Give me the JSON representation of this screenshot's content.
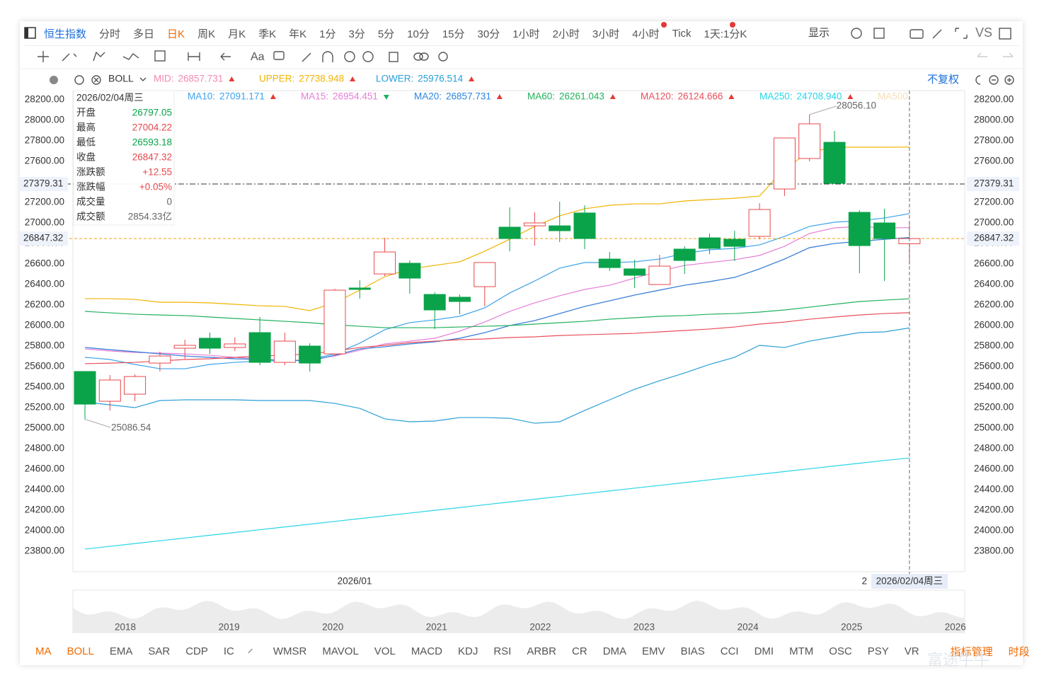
{
  "toolbar": {
    "symbol": "恒生指数",
    "periods": [
      "分时",
      "多日",
      "日K",
      "周K",
      "月K",
      "季K",
      "年K",
      "1分",
      "3分",
      "5分",
      "10分",
      "15分",
      "30分",
      "1小时",
      "2小时",
      "3小时",
      "4小时",
      "Tick",
      "1天:1分K"
    ],
    "active_period_index": 2,
    "display": "显示",
    "vs": "VS",
    "text_tool": "Aa"
  },
  "fq": "不复权",
  "info_panel": {
    "date": "2026/02/04周三",
    "labels": [
      "开盘",
      "最高",
      "最低",
      "收盘",
      "涨跌额",
      "涨跌幅",
      "成交量",
      "成交额"
    ],
    "change": "+12.55",
    "change_pct": "+0.05%",
    "volume": "0",
    "amount": "2854.33亿"
  },
  "chart_data": {
    "type": "candlestick",
    "indicator": "BOLL",
    "categories": [
      null,
      null,
      null,
      null,
      null,
      null,
      null,
      null,
      null,
      null,
      "2026/01",
      null,
      null,
      null,
      null,
      null,
      null,
      null,
      null,
      null,
      null,
      null,
      null,
      null,
      null,
      null,
      null,
      null,
      null,
      null,
      null,
      "2",
      null,
      "2026/02/04周三"
    ],
    "open": [
      25552,
      25262,
      25331,
      25634,
      25779,
      25876,
      25786,
      25931,
      25641,
      25800,
      25724,
      26366,
      26503,
      26607,
      26303,
      26276,
      26379,
      26959,
      26972,
      26972,
      27097,
      26648,
      26552,
      26400,
      26745,
      26855,
      26841,
      26869,
      27331,
      27628,
      27786,
      27103,
      27000,
      26797.05
    ],
    "high": [
      25552,
      25517,
      25524,
      25745,
      25862,
      25931,
      25883,
      26083,
      25931,
      25827,
      26359,
      26441,
      26855,
      26634,
      26324,
      26303,
      26614,
      27152,
      27103,
      27207,
      27172,
      26717,
      26641,
      26690,
      26772,
      26897,
      26924,
      27193,
      27828,
      28056.1,
      27897,
      27124,
      27138,
      27004.22
    ],
    "low": [
      25086.54,
      25172,
      25262,
      25552,
      25676,
      25724,
      25752,
      25614,
      25614,
      25552,
      25703,
      26262,
      26483,
      26310,
      25966,
      26110,
      26186,
      26724,
      26779,
      26814,
      26745,
      26531,
      26365,
      26400,
      26503,
      26697,
      26628,
      26841,
      27262,
      27600,
      27379,
      26510,
      26434,
      26593.18
    ],
    "close": [
      25234,
      25469,
      25503,
      25703,
      25807,
      25779,
      25821,
      25641,
      25848,
      25634,
      26345,
      26352,
      26717,
      26462,
      26152,
      26234,
      26614,
      26848,
      27000,
      26924,
      26848,
      26565,
      26490,
      26579,
      26634,
      26752,
      26772,
      27131,
      27828,
      27966,
      27386,
      26779,
      26848,
      26847.32
    ],
    "up_color": "#e5484d",
    "down_color": "#0aa34a",
    "series": [
      {
        "name": "MID:",
        "color": "#f08ab3",
        "readout": "26857.731",
        "trend": "up",
        "values": [
          25786,
          25765,
          25745,
          25724,
          25703,
          25690,
          25676,
          25669,
          25662,
          25655,
          25710,
          25772,
          25793,
          25821,
          25841,
          25876,
          25931,
          26000,
          26048,
          26117,
          26186,
          26241,
          26297,
          26345,
          26393,
          26428,
          26469,
          26552,
          26648,
          26759,
          26800,
          26821,
          26841,
          26858
        ]
      },
      {
        "name": "UPPER:",
        "color": "#f0b400",
        "readout": "27738.948",
        "trend": "up",
        "values": [
          26262,
          26262,
          26255,
          26227,
          26227,
          26221,
          26207,
          26193,
          26186,
          26145,
          26221,
          26345,
          26476,
          26552,
          26586,
          26621,
          26724,
          26841,
          26966,
          27069,
          27138,
          27172,
          27186,
          27186,
          27214,
          27228,
          27241,
          27262,
          27531,
          27690,
          27738,
          27738,
          27738,
          27739
        ]
      },
      {
        "name": "LOWER:",
        "color": "#2a9fd6",
        "readout": "25976.514",
        "trend": "up",
        "values": [
          25255,
          25227,
          25200,
          25269,
          25276,
          25276,
          25276,
          25269,
          25269,
          25269,
          25241,
          25193,
          25090,
          25062,
          25069,
          25103,
          25103,
          25096,
          25048,
          25062,
          25172,
          25276,
          25379,
          25462,
          25538,
          25621,
          25690,
          25807,
          25786,
          25848,
          25890,
          25931,
          25938,
          25977
        ]
      },
      {
        "name": "MA10:",
        "color": "#3ba3ec",
        "readout": "27091.171",
        "trend": "up",
        "values": [
          25690,
          25669,
          25621,
          25579,
          25579,
          25621,
          25641,
          25655,
          25655,
          25669,
          25724,
          25828,
          25959,
          26028,
          26055,
          26090,
          26172,
          26317,
          26434,
          26559,
          26614,
          26614,
          26621,
          26648,
          26703,
          26738,
          26752,
          26786,
          26869,
          26966,
          27007,
          27021,
          27048,
          27091
        ]
      },
      {
        "name": "MA15:",
        "color": "#e57fd6",
        "readout": "26954.451",
        "trend": "down",
        "values": [
          25772,
          25752,
          25738,
          25731,
          25724,
          25710,
          25690,
          25676,
          25655,
          25669,
          25703,
          25759,
          25821,
          25848,
          25876,
          25945,
          26034,
          26138,
          26221,
          26290,
          26352,
          26393,
          26462,
          26531,
          26586,
          26614,
          26641,
          26683,
          26772,
          26897,
          26952,
          26966,
          26952,
          26954
        ]
      },
      {
        "name": "MA20:",
        "color": "#2e86de",
        "readout": "26857.731",
        "trend": "up",
        "values": [
          25786,
          25765,
          25745,
          25724,
          25703,
          25690,
          25676,
          25669,
          25662,
          25655,
          25710,
          25772,
          25793,
          25821,
          25841,
          25876,
          25931,
          26000,
          26048,
          26117,
          26186,
          26241,
          26297,
          26345,
          26393,
          26428,
          26469,
          26552,
          26648,
          26759,
          26800,
          26821,
          26841,
          26858
        ]
      },
      {
        "name": "MA60:",
        "color": "#21b15d",
        "readout": "26261.043",
        "trend": "up",
        "values": [
          26138,
          26124,
          26110,
          26103,
          26097,
          26083,
          26069,
          26055,
          26041,
          26028,
          26007,
          25993,
          25979,
          25979,
          25979,
          25986,
          25993,
          26000,
          26014,
          26028,
          26041,
          26062,
          26076,
          26090,
          26097,
          26110,
          26117,
          26131,
          26152,
          26179,
          26207,
          26234,
          26248,
          26261
        ]
      },
      {
        "name": "MA120:",
        "color": "#e8505b",
        "readout": "26124.666",
        "trend": "up",
        "values": [
          25628,
          25634,
          25641,
          25655,
          25669,
          25676,
          25690,
          25703,
          25710,
          25724,
          25752,
          25786,
          25807,
          25834,
          25848,
          25862,
          25869,
          25883,
          25890,
          25903,
          25910,
          25917,
          25924,
          25938,
          25952,
          25966,
          25986,
          26014,
          26034,
          26062,
          26083,
          26103,
          26117,
          26125
        ]
      },
      {
        "name": "MA250:",
        "color": "#28d5e8",
        "readout": "24708.940",
        "trend": "up",
        "values": [
          23821,
          23848,
          23875,
          23902,
          23929,
          23956,
          23983,
          24010,
          24037,
          24064,
          24091,
          24118,
          24145,
          24172,
          24199,
          24226,
          24253,
          24280,
          24307,
          24334,
          24361,
          24388,
          24415,
          24442,
          24469,
          24496,
          24523,
          24550,
          24577,
          24604,
          24631,
          24658,
          24685,
          24709
        ]
      }
    ],
    "faded_legend": "MA500",
    "high_label": {
      "index": 29,
      "text": "28056.10"
    },
    "low_label": {
      "index": 0,
      "text": "25086.54"
    },
    "price_lines": [
      {
        "value": 27379.31,
        "color": "#333333",
        "dash": "8 3 2 3"
      },
      {
        "value": 26847.32,
        "color": "#f39c12",
        "dash": "4 3"
      }
    ],
    "crosshair_index": 33,
    "ylim": [
      23600,
      28290
    ],
    "yticks": [
      {
        "value": 23800,
        "label": "23800.00"
      },
      {
        "value": 24000,
        "label": "24000.00"
      },
      {
        "value": 24200,
        "label": "24200.00"
      },
      {
        "value": 24400,
        "label": "24400.00"
      },
      {
        "value": 24600,
        "label": "24600.00"
      },
      {
        "value": 24800,
        "label": "24800.00"
      },
      {
        "value": 25000,
        "label": "25000.00"
      },
      {
        "value": 25200,
        "label": "25200.00"
      },
      {
        "value": 25400,
        "label": "25400.00"
      },
      {
        "value": 25600,
        "label": "25600.00"
      },
      {
        "value": 25800,
        "label": "25800.00"
      },
      {
        "value": 26000,
        "label": "26000.00"
      },
      {
        "value": 26200,
        "label": "26200.00"
      },
      {
        "value": 26400,
        "label": "26400.00"
      },
      {
        "value": 26600,
        "label": "26600.00"
      },
      {
        "value": 26800,
        "label": "26800.00"
      },
      {
        "value": 27000,
        "label": "27000.00"
      },
      {
        "value": 27200,
        "label": "27200.00"
      },
      {
        "value": 27400,
        "label": "27400.00"
      },
      {
        "value": 27600,
        "label": "27600.00"
      },
      {
        "value": 27800,
        "label": "27800.00"
      },
      {
        "value": 28000,
        "label": "28000.00"
      },
      {
        "value": 28200,
        "label": "28200.00"
      }
    ],
    "grid": false
  },
  "navigator": {
    "years": [
      "2018",
      "2019",
      "2020",
      "2021",
      "2022",
      "2023",
      "2024",
      "2025",
      "2026"
    ]
  },
  "tabs": {
    "items": [
      "MA",
      "BOLL",
      "EMA",
      "SAR",
      "CDP",
      "IC",
      "WMSR",
      "MAVOL",
      "VOL",
      "MACD",
      "KDJ",
      "RSI",
      "ARBR",
      "CR",
      "DMA",
      "EMV",
      "BIAS",
      "CCI",
      "DMI",
      "MTM",
      "OSC",
      "PSY",
      "VR"
    ],
    "active": [
      0,
      1
    ],
    "manage": "指标管理",
    "period": "时段"
  },
  "watermark": "富途牛牛"
}
